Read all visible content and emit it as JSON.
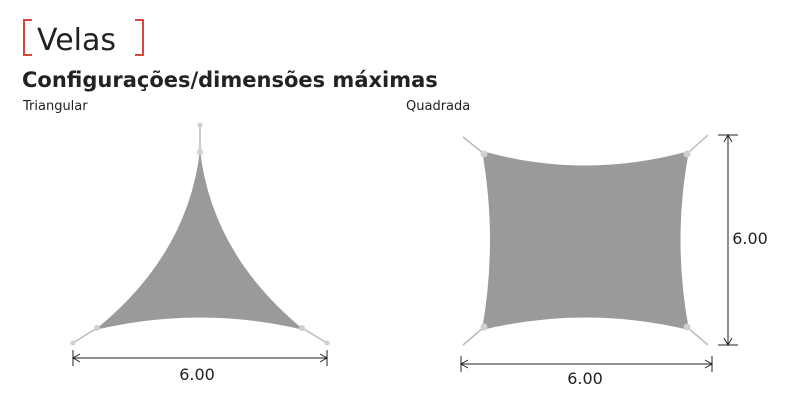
{
  "header": {
    "title": "Velas",
    "subtitle": "Configurações/dimensões máximas"
  },
  "shapes": [
    {
      "label": "Triangular",
      "dimensions": [
        "6.00"
      ]
    },
    {
      "label": "Quadrada",
      "dimensions": [
        "6.00",
        "6.00"
      ]
    }
  ]
}
